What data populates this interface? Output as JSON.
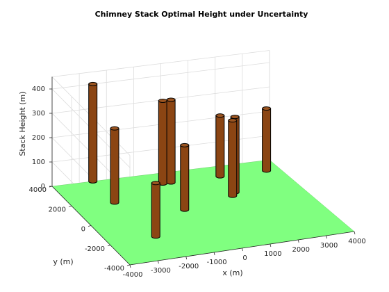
{
  "chart_data": {
    "type": "3d-bar-cylinders",
    "title": "Chimney Stack Optimal Height under Uncertainty",
    "xlabel": "x (m)",
    "ylabel": "y (m)",
    "zlabel": "Stack Height (m)",
    "x_ticks": [
      "-4000",
      "-3000",
      "-2000",
      "-1000",
      "0",
      "1000",
      "2000",
      "3000",
      "4000"
    ],
    "y_ticks": [
      "-4000",
      "-2000",
      "0",
      "2000",
      "4000"
    ],
    "z_ticks": [
      "0",
      "100",
      "200",
      "300",
      "400"
    ],
    "xlim": [
      -4000,
      4000
    ],
    "ylim": [
      -4000,
      4000
    ],
    "zlim": [
      0,
      450
    ],
    "grid": true,
    "ground_color": "#80ff80",
    "stack_color": "#8b4513",
    "stacks": [
      {
        "x": -2500,
        "y": 4000,
        "height": 400
      },
      {
        "x": -2500,
        "y": 1800,
        "height": 305
      },
      {
        "x": -2300,
        "y": -1800,
        "height": 220
      },
      {
        "x": -500,
        "y": 300,
        "height": 265
      },
      {
        "x": -300,
        "y": 3000,
        "height": 340
      },
      {
        "x": 0,
        "y": 3000,
        "height": 340
      },
      {
        "x": 1500,
        "y": 1000,
        "height": 310
      },
      {
        "x": 1700,
        "y": 1300,
        "height": 310
      },
      {
        "x": 1800,
        "y": 3000,
        "height": 250
      },
      {
        "x": 3500,
        "y": 3000,
        "height": 255
      }
    ]
  }
}
